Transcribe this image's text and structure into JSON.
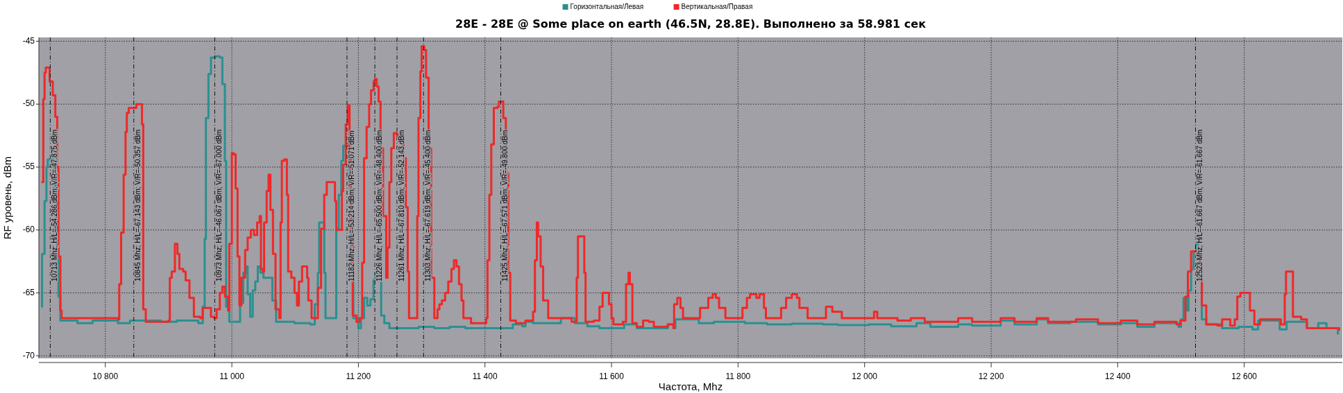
{
  "chart_data": {
    "type": "step",
    "title": "28E - 28E @ Some place on earth (46.5N, 28.8E). Выполнено за 58.981 сек",
    "xlabel": "Частота, Mhz",
    "ylabel": "RF уровень, dBm",
    "xlim": [
      10695,
      12755
    ],
    "ylim": [
      -70.2,
      -44.7
    ],
    "xticks": [
      {
        "value": 10800,
        "label": "10 800"
      },
      {
        "value": 11000,
        "label": "11 000"
      },
      {
        "value": 11200,
        "label": "11 200"
      },
      {
        "value": 11400,
        "label": "11 400"
      },
      {
        "value": 11600,
        "label": "11 600"
      },
      {
        "value": 11800,
        "label": "11 800"
      },
      {
        "value": 12000,
        "label": "12 000"
      },
      {
        "value": 12200,
        "label": "12 200"
      },
      {
        "value": 12400,
        "label": "12 400"
      },
      {
        "value": 12600,
        "label": "12 600"
      }
    ],
    "yticks": [
      -70,
      -65,
      -60,
      -55,
      -50,
      -45
    ],
    "grid": true,
    "legend": "top",
    "line_style": "solid",
    "series": [
      {
        "name": "Горизонтальная/Левая",
        "color": "#2a9090",
        "x": [
          10699,
          10700,
          10704,
          10707,
          10709,
          10714,
          10718,
          10721,
          10724,
          10726,
          10729,
          10756,
          10780,
          10820,
          10839,
          10869,
          10888,
          10913,
          10947,
          10954,
          10957,
          10959,
          10963,
          10967,
          10974,
          10981,
          10985,
          10989,
          10991,
          10996,
          11011,
          11013,
          11018,
          11023,
          11025,
          11029,
          11033,
          11037,
          11041,
          11045,
          11050,
          11060,
          11064,
          11070,
          11099,
          11124,
          11131,
          11136,
          11138,
          11143,
          11146,
          11148,
          11163,
          11165,
          11169,
          11173,
          11176,
          11182,
          11186,
          11189,
          11192,
          11200,
          11204,
          11209,
          11214,
          11219,
          11224,
          11227,
          11232,
          11236,
          11241,
          11249,
          11271,
          11295,
          11320,
          11344,
          11369,
          11398,
          11444,
          11459,
          11464,
          11476,
          11513,
          11520,
          11537,
          11542,
          11562,
          11581,
          11620,
          11640,
          11689,
          11698,
          11701,
          11738,
          11762,
          11811,
          11836,
          11846,
          11885,
          11934,
          11958,
          12007,
          12042,
          12082,
          12104,
          12148,
          12170,
          12215,
          12237,
          12272,
          12290,
          12325,
          12369,
          12405,
          12431,
          12458,
          12496,
          12500,
          12504,
          12509,
          12512,
          12516,
          12520,
          12524,
          12527,
          12530,
          12533,
          12540,
          12565,
          12591,
          12613,
          12622,
          12650,
          12656,
          12667,
          12699,
          12717,
          12730,
          12748
        ],
        "values": [
          -66.1,
          -61.9,
          -57.7,
          -55,
          -54.4,
          -54.4,
          -55,
          -57.5,
          -61.4,
          -65.3,
          -67.2,
          -67.4,
          -67.2,
          -67.4,
          -67.2,
          -67.2,
          -67.3,
          -67.2,
          -67.4,
          -66.1,
          -60.7,
          -51.1,
          -47.6,
          -46.3,
          -46.2,
          -46.3,
          -48.4,
          -54.5,
          -66.1,
          -67.3,
          -67.3,
          -65.8,
          -63.4,
          -62.9,
          -65.1,
          -66.9,
          -64.8,
          -64.1,
          -62.9,
          -63.4,
          -63.8,
          -63.8,
          -65.6,
          -67.3,
          -67.4,
          -67.5,
          -65.9,
          -63.4,
          -59.4,
          -59.4,
          -63.4,
          -67,
          -67,
          -59.9,
          -57.2,
          -54.5,
          -53.3,
          -53,
          -56.7,
          -62.6,
          -67,
          -67.8,
          -67,
          -65.4,
          -66,
          -65.5,
          -64,
          -63.4,
          -63.8,
          -66.8,
          -67.4,
          -67.8,
          -67.8,
          -67.7,
          -67.8,
          -67.7,
          -67.8,
          -67.8,
          -67.5,
          -67.65,
          -67.3,
          -67.4,
          -67.4,
          -67,
          -67,
          -67.4,
          -67.65,
          -67.8,
          -67.5,
          -67.8,
          -67.5,
          -67.8,
          -67.1,
          -67.4,
          -67.3,
          -67.4,
          -67.4,
          -67.5,
          -67.45,
          -67.5,
          -67.55,
          -67.5,
          -67.65,
          -67.4,
          -67.7,
          -67.5,
          -67.6,
          -67.2,
          -67.5,
          -67.1,
          -67.4,
          -67.3,
          -67.5,
          -67.4,
          -67.7,
          -67.4,
          -67.7,
          -67.1,
          -65.4,
          -66.4,
          -64.8,
          -63.1,
          -61.7,
          -61.1,
          -61.7,
          -64,
          -67.1,
          -67.5,
          -67.8,
          -67.7,
          -67.9,
          -67.2,
          -67.2,
          -67.9,
          -67.3,
          -67.8,
          -67.4,
          -67.8,
          -68.3
        ]
      },
      {
        "name": "Вертикальная/Правая",
        "color": "#f02828",
        "x": [
          10699,
          10702,
          10704,
          10706,
          10712,
          10717,
          10721,
          10724,
          10726,
          10729,
          10731,
          10820,
          10822,
          10825,
          10829,
          10832,
          10834,
          10837,
          10849,
          10856,
          10858,
          10860,
          10864,
          10900,
          10902,
          10905,
          10910,
          10914,
          10917,
          10923,
          10927,
          10933,
          10940,
          10950,
          10954,
          10967,
          10972,
          10976,
          10981,
          10985,
          10989,
          10994,
          10996,
          11000,
          11003,
          11006,
          11009,
          11012,
          11015,
          11021,
          11025,
          11030,
          11035,
          11040,
          11044,
          11046,
          11049,
          11051,
          11055,
          11058,
          11061,
          11065,
          11069,
          11075,
          11077,
          11079,
          11083,
          11087,
          11089,
          11094,
          11099,
          11103,
          11106,
          11111,
          11115,
          11119,
          11121,
          11126,
          11133,
          11136,
          11141,
          11146,
          11150,
          11160,
          11163,
          11165,
          11172,
          11174,
          11176,
          11180,
          11183,
          11186,
          11188,
          11191,
          11197,
          11202,
          11206,
          11209,
          11213,
          11217,
          11220,
          11224,
          11226,
          11229,
          11232,
          11235,
          11239,
          11244,
          11246,
          11249,
          11252,
          11256,
          11261,
          11268,
          11271,
          11275,
          11278,
          11280,
          11290,
          11293,
          11295,
          11298,
          11300,
          11304,
          11307,
          11311,
          11315,
          11320,
          11325,
          11328,
          11332,
          11337,
          11342,
          11347,
          11351,
          11355,
          11359,
          11363,
          11366,
          11378,
          11398,
          11402,
          11404,
          11407,
          11410,
          11414,
          11420,
          11422,
          11427,
          11429,
          11433,
          11437,
          11440,
          11449,
          11464,
          11476,
          11479,
          11482,
          11484,
          11488,
          11492,
          11500,
          11537,
          11545,
          11547,
          11554,
          11557,
          11559,
          11572,
          11581,
          11586,
          11594,
          11596,
          11600,
          11603,
          11618,
          11623,
          11627,
          11629,
          11633,
          11640,
          11650,
          11659,
          11667,
          11689,
          11698,
          11699,
          11704,
          11709,
          11713,
          11738,
          11740,
          11753,
          11760,
          11765,
          11770,
          11780,
          11807,
          11814,
          11819,
          11829,
          11834,
          11841,
          11844,
          11868,
          11876,
          11885,
          11893,
          11897,
          11910,
          11939,
          11949,
          11964,
          12013,
          12015,
          12020,
          12052,
          12073,
          12095,
          12113,
          12148,
          12170,
          12215,
          12237,
          12272,
          12290,
          12334,
          12369,
          12405,
          12431,
          12458,
          12493,
          12499,
          12507,
          12511,
          12516,
          12527,
          12530,
          12533,
          12540,
          12558,
          12565,
          12572,
          12578,
          12585,
          12589,
          12594,
          12605,
          12609,
          12616,
          12625,
          12650,
          12658,
          12664,
          12666,
          12674,
          12677,
          12690,
          12699,
          12721,
          12750
        ],
        "values": [
          -56.2,
          -49.6,
          -47.5,
          -47.1,
          -48.2,
          -49.3,
          -51,
          -55,
          -62.1,
          -66.4,
          -67,
          -67.1,
          -64.3,
          -60.2,
          -55.6,
          -52.2,
          -50.7,
          -50.3,
          -50,
          -50,
          -51.6,
          -66.3,
          -67.3,
          -67.2,
          -63.8,
          -63.3,
          -61.1,
          -61.9,
          -63.1,
          -63.3,
          -64,
          -65.4,
          -66.9,
          -67,
          -66.2,
          -66.9,
          -67,
          -66.3,
          -65,
          -64.5,
          -65.3,
          -66.4,
          -61.1,
          -53.9,
          -54,
          -56.7,
          -62.1,
          -66,
          -63.8,
          -61.6,
          -60.6,
          -60,
          -60.4,
          -59.4,
          -58.9,
          -63.1,
          -63.3,
          -59.4,
          -56.9,
          -55.6,
          -58.4,
          -61.9,
          -66.3,
          -67,
          -59.4,
          -54.5,
          -54.4,
          -57.2,
          -63.3,
          -63.8,
          -65,
          -66,
          -64.1,
          -62.9,
          -62.9,
          -63.8,
          -65.6,
          -67,
          -67,
          -64.6,
          -59.9,
          -57.2,
          -56.2,
          -56.2,
          -57.7,
          -60,
          -60,
          -56.9,
          -54.8,
          -51.6,
          -50.1,
          -54,
          -59.9,
          -66.8,
          -67.3,
          -67,
          -62.6,
          -54.3,
          -51.8,
          -50,
          -48.9,
          -48.2,
          -48,
          -48.6,
          -49.8,
          -53.5,
          -58.9,
          -63.8,
          -61.4,
          -56.2,
          -53.5,
          -52.3,
          -52.5,
          -52.5,
          -54.3,
          -58.2,
          -63.3,
          -67,
          -67,
          -58.9,
          -51.1,
          -47.4,
          -45.4,
          -45.7,
          -47.9,
          -53.5,
          -63.8,
          -67,
          -66.3,
          -65.9,
          -65.6,
          -65,
          -64.1,
          -63.1,
          -62.4,
          -62.9,
          -64.3,
          -65.6,
          -67,
          -67.4,
          -67.4,
          -67,
          -62.4,
          -57.2,
          -53.2,
          -50.3,
          -50.2,
          -49.8,
          -49.8,
          -51.1,
          -55.5,
          -63.4,
          -67.2,
          -67.4,
          -67.2,
          -66.5,
          -62.4,
          -59.4,
          -60.5,
          -62.9,
          -65.6,
          -67,
          -67.3,
          -63.8,
          -60.5,
          -60.5,
          -63.4,
          -67.3,
          -67.2,
          -66.1,
          -65,
          -65,
          -65.9,
          -67,
          -67.5,
          -67.3,
          -64.3,
          -63.4,
          -64.3,
          -67.4,
          -67.7,
          -67.2,
          -67.3,
          -67.7,
          -67.5,
          -67.8,
          -65.9,
          -65.4,
          -66.2,
          -67,
          -67,
          -66.2,
          -65.4,
          -65.1,
          -65.4,
          -66.2,
          -67,
          -66.2,
          -65.4,
          -65.1,
          -65.4,
          -65.1,
          -66.2,
          -67,
          -66.2,
          -65.4,
          -65.1,
          -65.4,
          -66.2,
          -67,
          -66.1,
          -66.5,
          -67,
          -67,
          -66.5,
          -67,
          -67.2,
          -67,
          -67.3,
          -67.3,
          -67,
          -67.3,
          -67,
          -67.3,
          -67,
          -67.3,
          -67.1,
          -67.4,
          -67.2,
          -67.5,
          -67.3,
          -67.5,
          -67.2,
          -65.3,
          -63.3,
          -61.7,
          -61.7,
          -64,
          -66,
          -67.5,
          -67.6,
          -67.1,
          -67.1,
          -67.6,
          -67.1,
          -65.3,
          -65,
          -65,
          -66.4,
          -67.5,
          -67.1,
          -67.1,
          -67.5,
          -65.1,
          -63.3,
          -63.3,
          -66.9,
          -67.1,
          -67.8,
          -67.8,
          -68
        ]
      }
    ],
    "ref_lines": [
      {
        "axis": "x",
        "value": 10713,
        "label": "10713 Mhz; H/L=-54.286 dBm; V/R=-47.875 dBm",
        "line_style": "dashed"
      },
      {
        "axis": "x",
        "value": 10845,
        "label": "10845 Mhz; H/L=-67.143 dBm; V/R=-50.357 dBm",
        "line_style": "dashed"
      },
      {
        "axis": "x",
        "value": 10973,
        "label": "10973 Mhz; H/L=-46.067 dBm; V/R=-67.000 dBm",
        "line_style": "dashed"
      },
      {
        "axis": "x",
        "value": 11182,
        "label": "11182 Mhz; H/L=-53.214 dBm; V/R=-51.071 dBm",
        "line_style": "dashed"
      },
      {
        "axis": "x",
        "value": 11226,
        "label": "11226 Mhz; H/L=-65.500 dBm; V/R=-48.400 dBm",
        "line_style": "dashed"
      },
      {
        "axis": "x",
        "value": 11261,
        "label": "11261 Mhz; H/L=-67.810 dBm; V/R=-52.143 dBm",
        "line_style": "dashed"
      },
      {
        "axis": "x",
        "value": 11303,
        "label": "11303 Mhz; H/L=-67.619 dBm; V/R=-45.400 dBm",
        "line_style": "dashed"
      },
      {
        "axis": "x",
        "value": 11425,
        "label": "11425 Mhz; H/L=-67.571 dBm; V/R=-49.800 dBm",
        "line_style": "dashed"
      },
      {
        "axis": "x",
        "value": 12523,
        "label": "12523 Mhz; H/L=-61.667 dBm; V/R=-61.667 dBm",
        "line_style": "dashed"
      }
    ]
  }
}
